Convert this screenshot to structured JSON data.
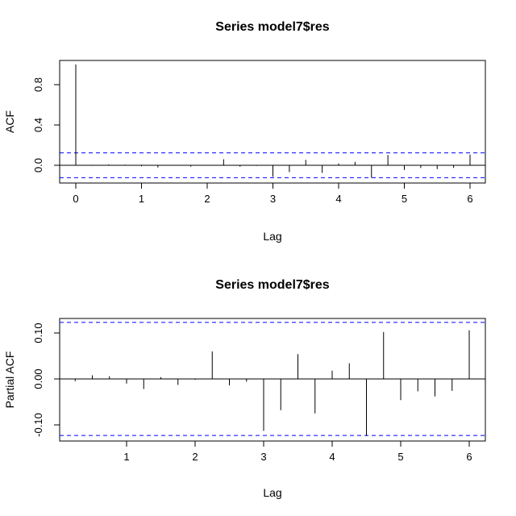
{
  "chart_data": [
    {
      "type": "bar",
      "title": "Series  model7$res",
      "xlabel": "Lag",
      "ylabel": "ACF",
      "xlim": [
        -0.25,
        6.25
      ],
      "ylim": [
        -0.165,
        1.0
      ],
      "xticks": [
        0,
        1,
        2,
        3,
        4,
        5,
        6
      ],
      "xtick_labels": [
        "0",
        "1",
        "2",
        "3",
        "4",
        "5",
        "6"
      ],
      "yticks": [
        0.0,
        0.4,
        0.8
      ],
      "ytick_labels": [
        "0.0",
        "0.4",
        "0.8"
      ],
      "confidence_band": 0.123,
      "band_color": "#0000ff",
      "lags": [
        0,
        0.25,
        0.5,
        0.75,
        1.0,
        1.25,
        1.5,
        1.75,
        2.0,
        2.25,
        2.5,
        2.75,
        3.0,
        3.25,
        3.5,
        3.75,
        4.0,
        4.25,
        4.5,
        4.75,
        5.0,
        5.25,
        5.5,
        5.75,
        6.0
      ],
      "values": [
        1.0,
        -0.005,
        0.008,
        0.006,
        -0.01,
        -0.022,
        0.004,
        -0.013,
        -0.002,
        0.06,
        -0.014,
        -0.006,
        -0.113,
        -0.068,
        0.054,
        -0.075,
        0.018,
        0.034,
        -0.124,
        0.102,
        -0.046,
        -0.027,
        -0.038,
        -0.026,
        0.106
      ]
    },
    {
      "type": "bar",
      "title": "Series  model7$res",
      "xlabel": "Lag",
      "ylabel": "Partial ACF",
      "xlim": [
        0.1,
        6.2
      ],
      "ylim": [
        -0.133,
        0.126
      ],
      "xticks": [
        1,
        2,
        3,
        4,
        5,
        6
      ],
      "xtick_labels": [
        "1",
        "2",
        "3",
        "4",
        "5",
        "6"
      ],
      "yticks": [
        -0.1,
        0.0,
        0.1
      ],
      "ytick_labels": [
        "-0.10",
        "0.00",
        "0.10"
      ],
      "confidence_band": 0.123,
      "band_color": "#0000ff",
      "lags": [
        0.25,
        0.5,
        0.75,
        1.0,
        1.25,
        1.5,
        1.75,
        2.0,
        2.25,
        2.5,
        2.75,
        3.0,
        3.25,
        3.5,
        3.75,
        4.0,
        4.25,
        4.5,
        4.75,
        5.0,
        5.25,
        5.5,
        5.75,
        6.0
      ],
      "values": [
        -0.005,
        0.008,
        0.006,
        -0.01,
        -0.022,
        0.004,
        -0.013,
        -0.002,
        0.06,
        -0.014,
        -0.006,
        -0.113,
        -0.068,
        0.054,
        -0.075,
        0.018,
        0.034,
        -0.124,
        0.102,
        -0.046,
        -0.027,
        -0.038,
        -0.026,
        0.106
      ]
    }
  ]
}
